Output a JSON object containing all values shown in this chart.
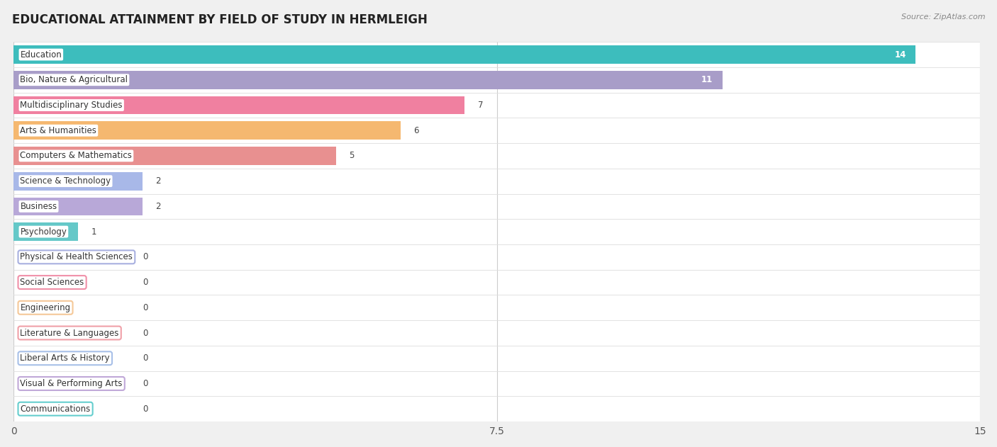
{
  "title": "EDUCATIONAL ATTAINMENT BY FIELD OF STUDY IN HERMLEIGH",
  "source": "Source: ZipAtlas.com",
  "categories": [
    "Education",
    "Bio, Nature & Agricultural",
    "Multidisciplinary Studies",
    "Arts & Humanities",
    "Computers & Mathematics",
    "Science & Technology",
    "Business",
    "Psychology",
    "Physical & Health Sciences",
    "Social Sciences",
    "Engineering",
    "Literature & Languages",
    "Liberal Arts & History",
    "Visual & Performing Arts",
    "Communications"
  ],
  "values": [
    14,
    11,
    7,
    6,
    5,
    2,
    2,
    1,
    0,
    0,
    0,
    0,
    0,
    0,
    0
  ],
  "bar_colors": [
    "#3DBDBD",
    "#A89DC8",
    "#F080A0",
    "#F5B870",
    "#E89090",
    "#A8B8E8",
    "#B8A8D8",
    "#65C8C8",
    "#A8B0E0",
    "#F090A8",
    "#F5C898",
    "#F0A0A8",
    "#A8C0E8",
    "#C0A8D8",
    "#65CECE"
  ],
  "xlim": [
    0,
    15
  ],
  "xticks": [
    0,
    7.5,
    15
  ],
  "background_color": "#f0f0f0",
  "row_bg_color": "#ffffff",
  "row_alt_color": "#f7f7f7",
  "title_fontsize": 12,
  "label_fontsize": 8.5,
  "value_fontsize": 8.5
}
